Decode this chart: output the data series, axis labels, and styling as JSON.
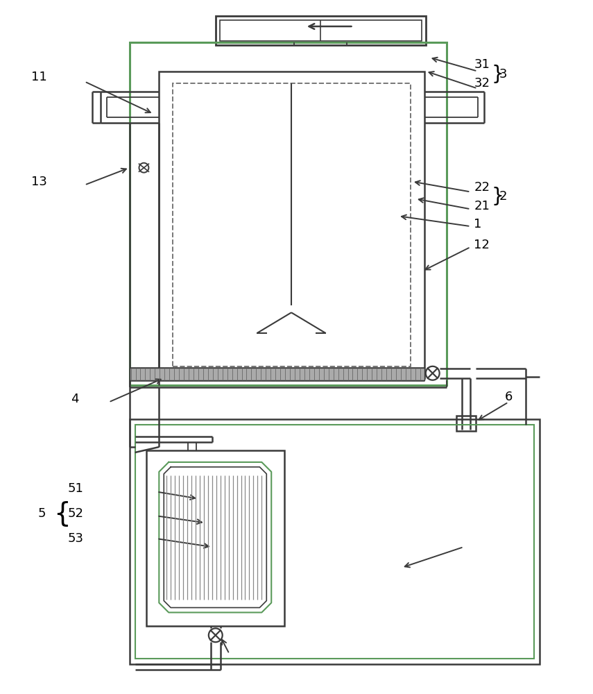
{
  "bg_color": "#ffffff",
  "line_color": "#3a3a3a",
  "green_color": "#5a9a5a",
  "dashed_color": "#777777",
  "figsize": [
    8.55,
    10.0
  ],
  "dpi": 100
}
